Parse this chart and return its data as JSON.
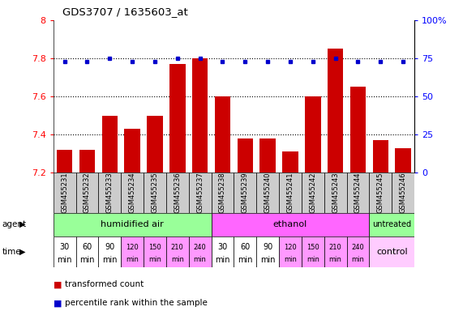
{
  "title": "GDS3707 / 1635603_at",
  "samples": [
    "GSM455231",
    "GSM455232",
    "GSM455233",
    "GSM455234",
    "GSM455235",
    "GSM455236",
    "GSM455237",
    "GSM455238",
    "GSM455239",
    "GSM455240",
    "GSM455241",
    "GSM455242",
    "GSM455243",
    "GSM455244",
    "GSM455245",
    "GSM455246"
  ],
  "red_values": [
    7.32,
    7.32,
    7.5,
    7.43,
    7.5,
    7.77,
    7.8,
    7.6,
    7.38,
    7.38,
    7.31,
    7.6,
    7.85,
    7.65,
    7.37,
    7.33
  ],
  "blue_values": [
    73,
    73,
    75,
    73,
    73,
    75,
    75,
    73,
    73,
    73,
    73,
    73,
    75,
    73,
    73,
    73
  ],
  "ylim": [
    7.2,
    8.0
  ],
  "yticks": [
    7.2,
    7.4,
    7.6,
    7.8,
    8.0
  ],
  "ytick_labels": [
    "7.2",
    "7.4",
    "7.6",
    "7.8",
    "8"
  ],
  "y2lim": [
    0,
    100
  ],
  "y2ticks": [
    0,
    25,
    50,
    75,
    100
  ],
  "y2ticklabels": [
    "0",
    "25",
    "50",
    "75",
    "100%"
  ],
  "bar_color": "#cc0000",
  "dot_color": "#0000cc",
  "humidified_label": "humidified air",
  "humidified_color": "#99ff99",
  "ethanol_label": "ethanol",
  "ethanol_color": "#ff66ff",
  "untreated_label": "untreated",
  "untreated_color": "#99ff99",
  "time_labels_14": [
    "30",
    "60",
    "90",
    "120",
    "150",
    "210",
    "240",
    "30",
    "60",
    "90",
    "120",
    "150",
    "210",
    "240"
  ],
  "time_colors": [
    "#ffffff",
    "#ffffff",
    "#ffffff",
    "#ff99ff",
    "#ff99ff",
    "#ff99ff",
    "#ff99ff",
    "#ffffff",
    "#ffffff",
    "#ffffff",
    "#ff99ff",
    "#ff99ff",
    "#ff99ff",
    "#ff99ff"
  ],
  "control_label": "control",
  "control_color": "#ffccff",
  "agent_label": "agent",
  "time_label": "time",
  "legend_red": "transformed count",
  "legend_blue": "percentile rank within the sample",
  "sample_bg_color": "#cccccc",
  "white": "#ffffff",
  "black": "#000000"
}
